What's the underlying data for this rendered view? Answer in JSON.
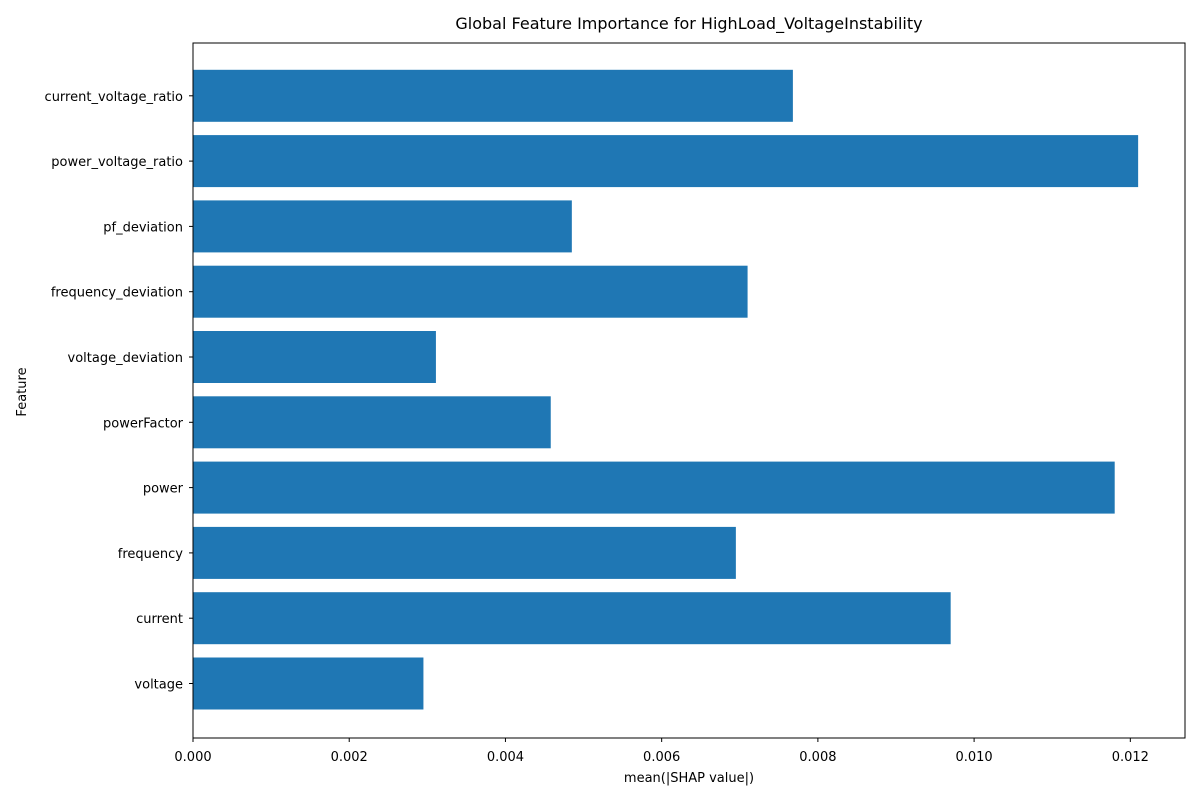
{
  "chart_data": {
    "type": "bar",
    "orientation": "horizontal",
    "title": "Global Feature Importance for HighLoad_VoltageInstability",
    "xlabel": "mean(|SHAP value|)",
    "ylabel": "Feature",
    "categories": [
      "voltage",
      "current",
      "frequency",
      "power",
      "powerFactor",
      "voltage_deviation",
      "frequency_deviation",
      "pf_deviation",
      "power_voltage_ratio",
      "current_voltage_ratio"
    ],
    "values": [
      0.00295,
      0.0097,
      0.00695,
      0.0118,
      0.00458,
      0.00311,
      0.0071,
      0.00485,
      0.0121,
      0.00768
    ],
    "xlim": [
      0,
      0.0127
    ],
    "xticks": [
      "0.000",
      "0.002",
      "0.004",
      "0.006",
      "0.008",
      "0.010",
      "0.012"
    ],
    "xtick_values": [
      0,
      0.002,
      0.004,
      0.006,
      0.008,
      0.01,
      0.012
    ],
    "bar_color": "#1f77b4",
    "grid": false,
    "legend": "none"
  }
}
